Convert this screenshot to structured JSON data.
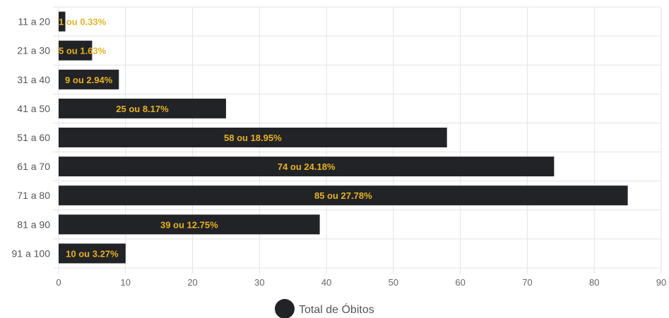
{
  "chart_data": {
    "type": "bar",
    "orientation": "horizontal",
    "categories": [
      "11 a 20",
      "21 a 30",
      "31 a 40",
      "41 a 50",
      "51 a 60",
      "61 a 70",
      "71 a 80",
      "81 a 90",
      "91 a 100"
    ],
    "series": [
      {
        "name": "Total de Óbitos",
        "values": [
          1,
          5,
          9,
          25,
          58,
          74,
          85,
          39,
          10
        ],
        "data_labels": [
          "1 ou 0.33%",
          "5 ou 1.63%",
          "9 ou 2.94%",
          "25 ou 8.17%",
          "58 ou 18.95%",
          "74 ou 24.18%",
          "85 ou 27.78%",
          "39 ou 12.75%",
          "10 ou 3.27%"
        ]
      }
    ],
    "x_ticks": [
      "0",
      "10",
      "20",
      "30",
      "40",
      "50",
      "60",
      "70",
      "80",
      "90"
    ],
    "xlim": [
      0,
      90
    ],
    "grid": true,
    "legend_position": "bottom",
    "colors": {
      "bar": "#222326",
      "label": "#e6b224",
      "grid": "#e3e3e3"
    }
  }
}
